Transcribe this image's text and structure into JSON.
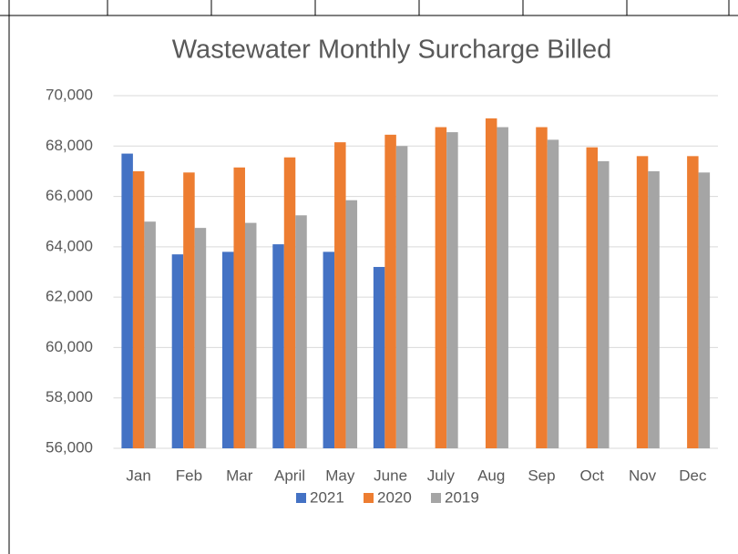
{
  "chart_data": {
    "type": "bar",
    "title": "Wastewater Monthly Surcharge Billed",
    "categories": [
      "Jan",
      "Feb",
      "Mar",
      "April",
      "May",
      "June",
      "July",
      "Aug",
      "Sep",
      "Oct",
      "Nov",
      "Dec"
    ],
    "series": [
      {
        "name": "2021",
        "color": "#4472c4",
        "values": [
          67700,
          63700,
          63800,
          64100,
          63800,
          63200,
          null,
          null,
          null,
          null,
          null,
          null
        ]
      },
      {
        "name": "2020",
        "color": "#ed7d31",
        "values": [
          67000,
          66950,
          67150,
          67550,
          68150,
          68450,
          68750,
          69100,
          68750,
          67950,
          67600,
          67600
        ]
      },
      {
        "name": "2019",
        "color": "#a5a5a5",
        "values": [
          65000,
          64750,
          64950,
          65250,
          65850,
          68000,
          68550,
          68750,
          68250,
          67400,
          67000,
          66950
        ]
      }
    ],
    "ylim": [
      56000,
      70000
    ],
    "yticks": [
      {
        "value": 56000,
        "label": "56,000"
      },
      {
        "value": 58000,
        "label": "58,000"
      },
      {
        "value": 60000,
        "label": "60,000"
      },
      {
        "value": 62000,
        "label": "62,000"
      },
      {
        "value": 64000,
        "label": "64,000"
      },
      {
        "value": 66000,
        "label": "66,000"
      },
      {
        "value": 68000,
        "label": "68,000"
      },
      {
        "value": 70000,
        "label": "70,000"
      }
    ],
    "grid": true,
    "legend": "bottom"
  }
}
